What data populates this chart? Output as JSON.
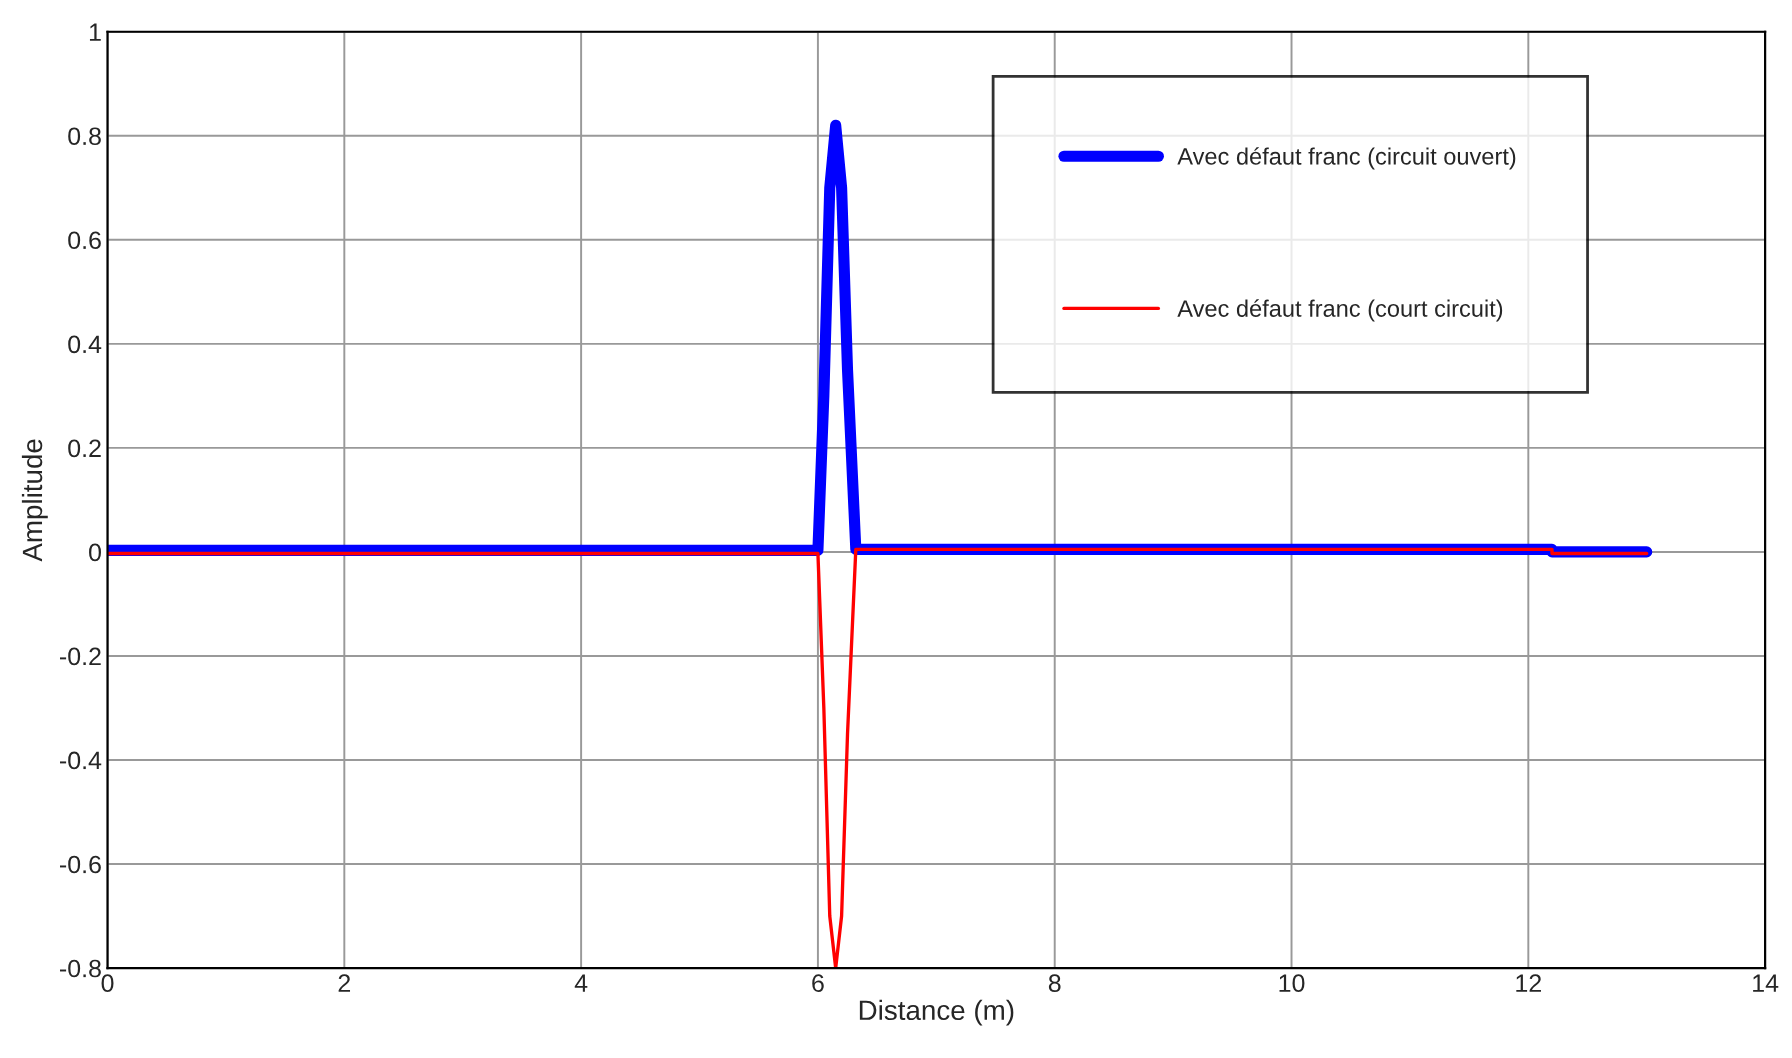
{
  "chart_data": {
    "type": "line",
    "xlabel": "Distance (m)",
    "ylabel": "Amplitude",
    "xlim": [
      0,
      14
    ],
    "xticks": [
      0,
      2,
      4,
      6,
      8,
      10,
      12,
      14
    ],
    "ylim": [
      -0.8,
      1
    ],
    "yticks": [
      -0.8,
      -0.6,
      -0.4,
      -0.2,
      0,
      0.2,
      0.4,
      0.6,
      0.8,
      1
    ],
    "grid": true,
    "legend": "top right",
    "line_style": "solid",
    "marker": "none",
    "series": [
      {
        "name": "Avec défaut franc (circuit ouvert)",
        "color": "#0000ff",
        "x": [
          0,
          6.0,
          6.05,
          6.1,
          6.15,
          6.2,
          6.25,
          6.32,
          12.2,
          12.2,
          13.0
        ],
        "values": [
          0.003,
          0.003,
          0.3,
          0.7,
          0.82,
          0.7,
          0.35,
          0.005,
          0.005,
          0.0,
          0.0
        ]
      },
      {
        "name": "Avec défaut franc (court circuit)",
        "color": "#ff0000",
        "x": [
          0,
          6.0,
          6.05,
          6.1,
          6.15,
          6.2,
          6.25,
          6.32,
          12.2,
          12.2,
          13.0
        ],
        "values": [
          -0.003,
          -0.003,
          -0.3,
          -0.7,
          -0.8,
          -0.7,
          -0.35,
          0.005,
          0.005,
          -0.003,
          -0.003
        ]
      }
    ]
  }
}
